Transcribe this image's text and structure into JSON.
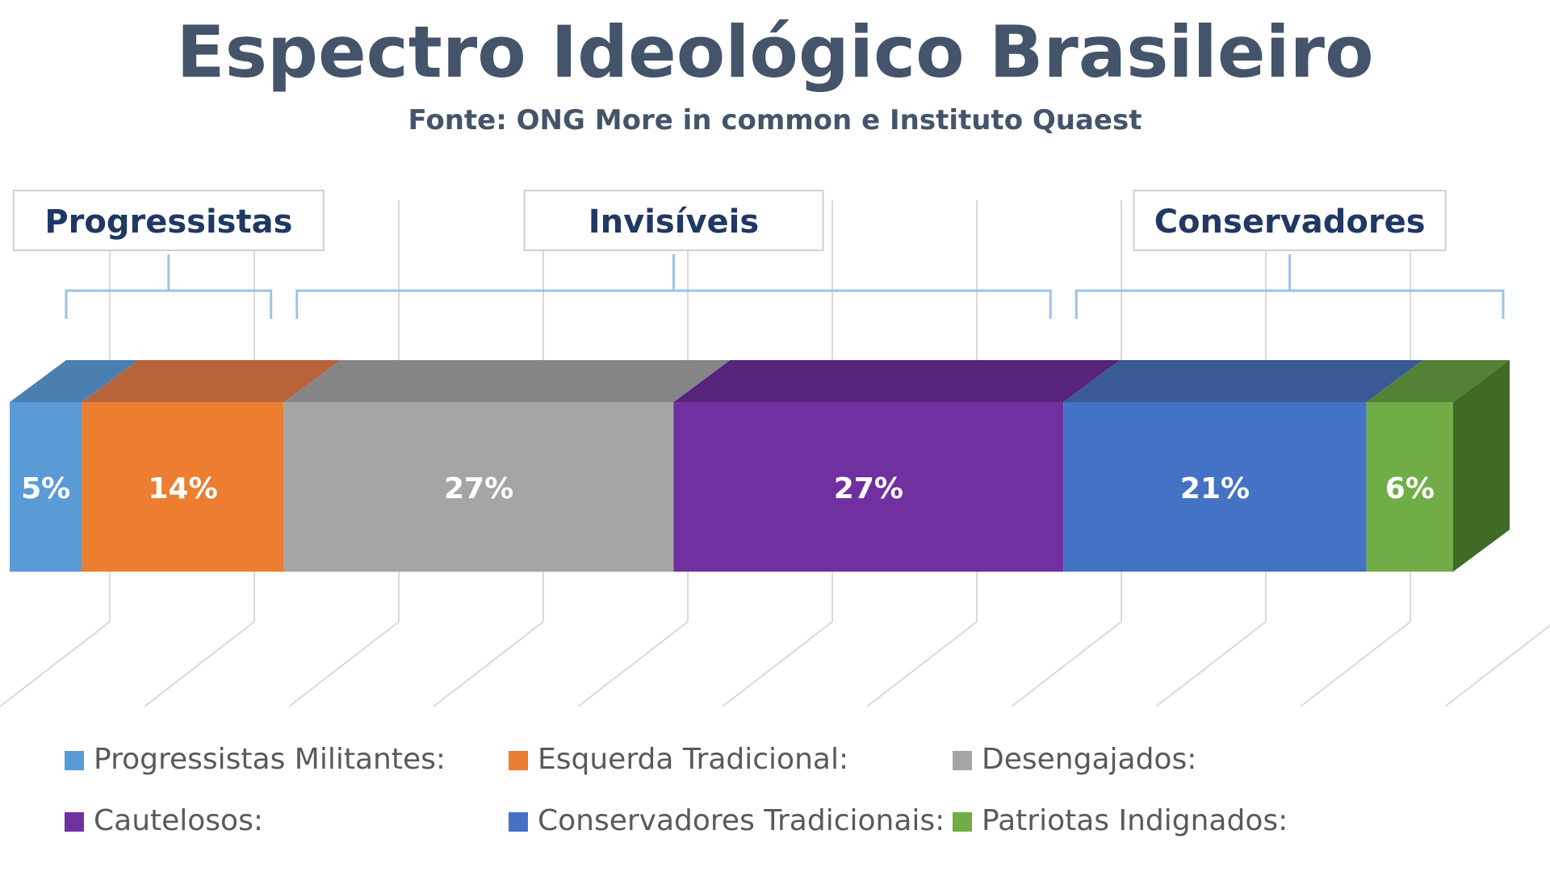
{
  "chart_data": {
    "type": "bar",
    "orientation": "horizontal-stacked-100",
    "title": "Espectro Ideológico Brasileiro",
    "subtitle": "Fonte: ONG More in common e Instituto Quaest",
    "series": [
      {
        "name": "Progressistas Militantes:",
        "value": 5,
        "label": "5%",
        "color": "#5b9bd5",
        "top_color": "#4a7fb0",
        "group": "Progressistas"
      },
      {
        "name": "Esquerda Tradicional:",
        "value": 14,
        "label": "14%",
        "color": "#ed7d31",
        "top_color": "#b8643a",
        "group": "Progressistas"
      },
      {
        "name": "Desengajados:",
        "value": 27,
        "label": "27%",
        "color": "#a5a5a5",
        "top_color": "#858585",
        "group": "Invisíveis"
      },
      {
        "name": "Cautelosos:",
        "value": 27,
        "label": "27%",
        "color": "#7030a0",
        "top_color": "#56237d",
        "group": "Invisíveis"
      },
      {
        "name": "Conservadores Tradicionais:",
        "value": 21,
        "label": "21%",
        "color": "#4472c4",
        "top_color": "#3a5a96",
        "group": "Conservadores"
      },
      {
        "name": "Patriotas Indignados:",
        "value": 6,
        "label": "6%",
        "color": "#70ad47",
        "top_color": "#548235",
        "side_color": "#3f6b26",
        "group": "Conservadores"
      }
    ],
    "groups": [
      {
        "label": "Progressistas",
        "start": 0,
        "end": 19
      },
      {
        "label": "Invisíveis",
        "start": 19,
        "end": 73
      },
      {
        "label": "Conservadores",
        "start": 73,
        "end": 100
      }
    ],
    "xlim": [
      0,
      100
    ],
    "legend_position": "bottom",
    "grid": true
  },
  "colors": {
    "title": "#44546a",
    "group_label": "#203864",
    "bracket": "#9dc3e6",
    "grid": "#d9d9d9",
    "legend_text": "#595959"
  }
}
